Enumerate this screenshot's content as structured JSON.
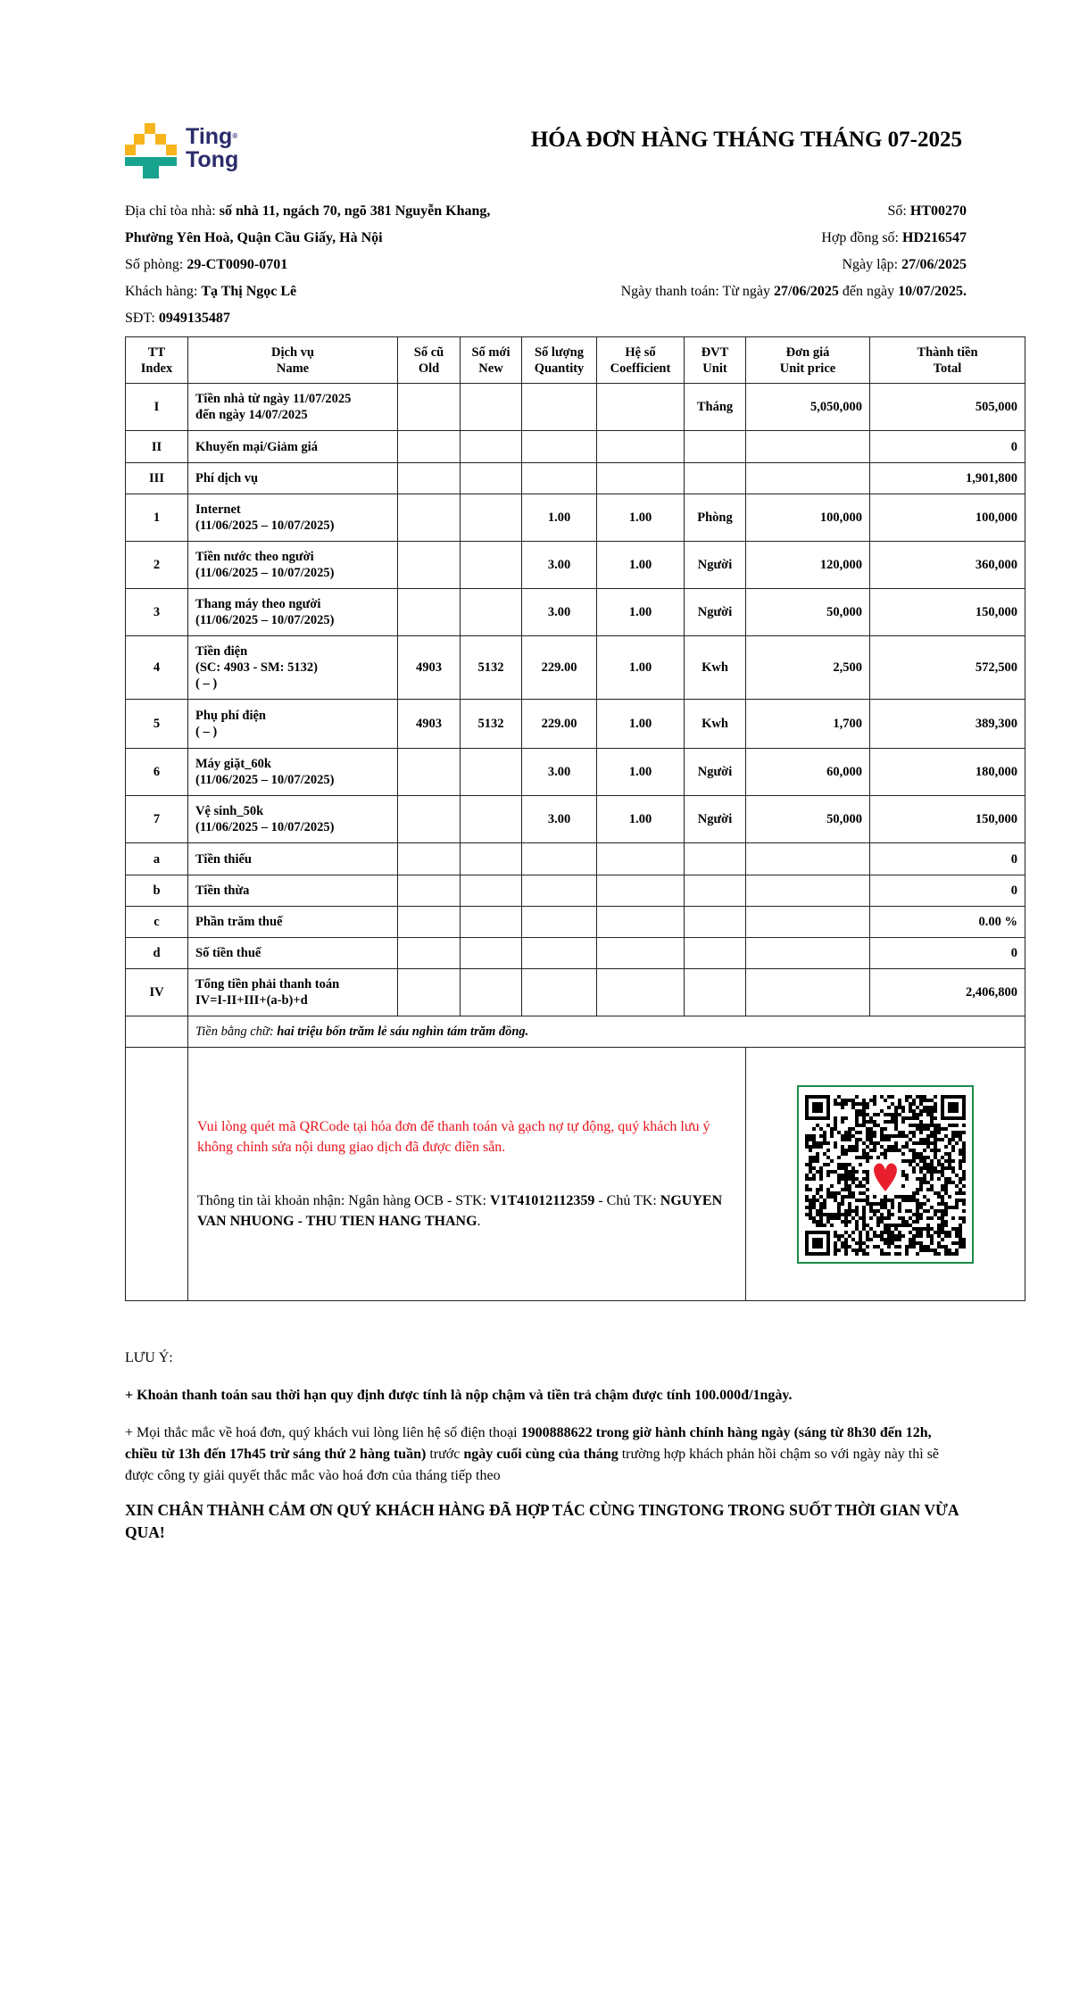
{
  "brand": {
    "name_line1": "Ting",
    "name_line2": "Tong",
    "colors": {
      "yellow": "#f7b41c",
      "teal": "#17a38e",
      "navy": "#2b2c6c"
    }
  },
  "title": "HÓA ĐƠN HÀNG THÁNG THÁNG 07-2025",
  "info": {
    "address_label": "Địa chỉ tòa nhà: ",
    "address_line1": "số nhà 11, ngách 70, ngõ 381 Nguyễn Khang,",
    "address_line2": "Phường Yên Hoà, Quận Cầu Giấy, Hà Nội",
    "room_label": "Số phòng: ",
    "room": "29-CT0090-0701",
    "customer_label": "Khách hàng: ",
    "customer": "Tạ Thị Ngọc Lê",
    "phone_label": "SĐT: ",
    "phone": "0949135487",
    "invoice_no_label": "Số: ",
    "invoice_no": "HT00270",
    "contract_label": "Hợp đồng số: ",
    "contract": "HD216547",
    "created_label": "Ngày lập: ",
    "created": "27/06/2025",
    "pay_label": "Ngày thanh toán: Từ ngày ",
    "pay_from": "27/06/2025",
    "pay_mid": " đến ngày ",
    "pay_to": "10/07/2025."
  },
  "table": {
    "headers": [
      "TT\nIndex",
      "Dịch vụ\nName",
      "Số cũ\nOld",
      "Số mới\nNew",
      "Số lượng\nQuantity",
      "Hệ số\nCoefficient",
      "ĐVT\nUnit",
      "Đơn giá\nUnit price",
      "Thành tiền\nTotal"
    ],
    "rows": [
      [
        "I",
        "Tiền nhà từ ngày 11/07/2025\nđến ngày 14/07/2025",
        "",
        "",
        "",
        "",
        "Tháng",
        "5,050,000",
        "505,000"
      ],
      [
        "II",
        "Khuyến mại/Giảm giá",
        "",
        "",
        "",
        "",
        "",
        "",
        "0"
      ],
      [
        "III",
        "Phí dịch vụ",
        "",
        "",
        "",
        "",
        "",
        "",
        "1,901,800"
      ],
      [
        "1",
        "Internet\n(11/06/2025 – 10/07/2025)",
        "",
        "",
        "1.00",
        "1.00",
        "Phòng",
        "100,000",
        "100,000"
      ],
      [
        "2",
        "Tiền nước theo người\n(11/06/2025 – 10/07/2025)",
        "",
        "",
        "3.00",
        "1.00",
        "Người",
        "120,000",
        "360,000"
      ],
      [
        "3",
        "Thang máy theo người\n(11/06/2025 – 10/07/2025)",
        "",
        "",
        "3.00",
        "1.00",
        "Người",
        "50,000",
        "150,000"
      ],
      [
        "4",
        "Tiền điện\n(SC: 4903 - SM: 5132)\n( – )",
        "4903",
        "5132",
        "229.00",
        "1.00",
        "Kwh",
        "2,500",
        "572,500"
      ],
      [
        "5",
        "Phụ phí điện\n( – )",
        "4903",
        "5132",
        "229.00",
        "1.00",
        "Kwh",
        "1,700",
        "389,300"
      ],
      [
        "6",
        "Máy giặt_60k\n(11/06/2025 – 10/07/2025)",
        "",
        "",
        "3.00",
        "1.00",
        "Người",
        "60,000",
        "180,000"
      ],
      [
        "7",
        "Vệ sinh_50k\n(11/06/2025 – 10/07/2025)",
        "",
        "",
        "3.00",
        "1.00",
        "Người",
        "50,000",
        "150,000"
      ],
      [
        "a",
        "Tiền thiếu",
        "",
        "",
        "",
        "",
        "",
        "",
        "0"
      ],
      [
        "b",
        "Tiền thừa",
        "",
        "",
        "",
        "",
        "",
        "",
        "0"
      ],
      [
        "c",
        "Phần trăm thuế",
        "",
        "",
        "",
        "",
        "",
        "",
        "0.00 %"
      ],
      [
        "d",
        "Số tiền thuế",
        "",
        "",
        "",
        "",
        "",
        "",
        "0"
      ],
      [
        "IV",
        "Tổng tiền phải thanh toán\nIV=I-II+III+(a-b)+d",
        "",
        "",
        "",
        "",
        "",
        "",
        "2,406,800"
      ]
    ],
    "words_label": "Tiền bằng chữ: ",
    "words_value": "hai triệu bốn trăm lẻ sáu nghìn tám trăm đồng."
  },
  "payment": {
    "warning": "Vui lòng quét mã QRCode tại hóa đơn để thanh toán và gạch nợ tự động, quý khách lưu ý không chỉnh sửa nội dung giao dịch đã được điền sẵn.",
    "account_label": "Thông tin tài khoản nhận: Ngân hàng OCB - STK: ",
    "account_no": "V1T41012112359",
    "owner_label": " - Chủ TK: ",
    "owner": "NGUYEN VAN NHUONG - THU TIEN HANG THANG",
    "owner_end": ".",
    "qr_icon": "qr-code-with-heart",
    "warning_color": "#e8141b",
    "qr_border_color": "#1e8a4a"
  },
  "notes": {
    "heading": "LƯU Ý:",
    "note1": "+ Khoản thanh toán sau thời hạn quy định được tính là nộp chậm và tiền trả chậm được tính 100.000đ/1ngày.",
    "note2_a": "+ Mọi thắc mắc về hoá đơn, quý khách vui lòng liên hệ số điện thoại ",
    "note2_b": "1900888622 trong giờ hành chính hàng ngày (sáng từ 8h30 đến 12h, chiều từ 13h đến 17h45 trừ sáng thứ 2 hàng tuần)",
    "note2_c": " trước ",
    "note2_d": "ngày cuối cùng của tháng",
    "note2_e": " trường hợp khách phản hồi chậm so với ngày này thì sẽ được công ty giải quyết thắc mắc vào hoá đơn của tháng tiếp theo",
    "thanks": "XIN CHÂN THÀNH CẢM ƠN QUÝ KHÁCH HÀNG ĐÃ HỢP TÁC CÙNG TINGTONG TRONG SUỐT THỜI GIAN VỪA QUA!"
  }
}
